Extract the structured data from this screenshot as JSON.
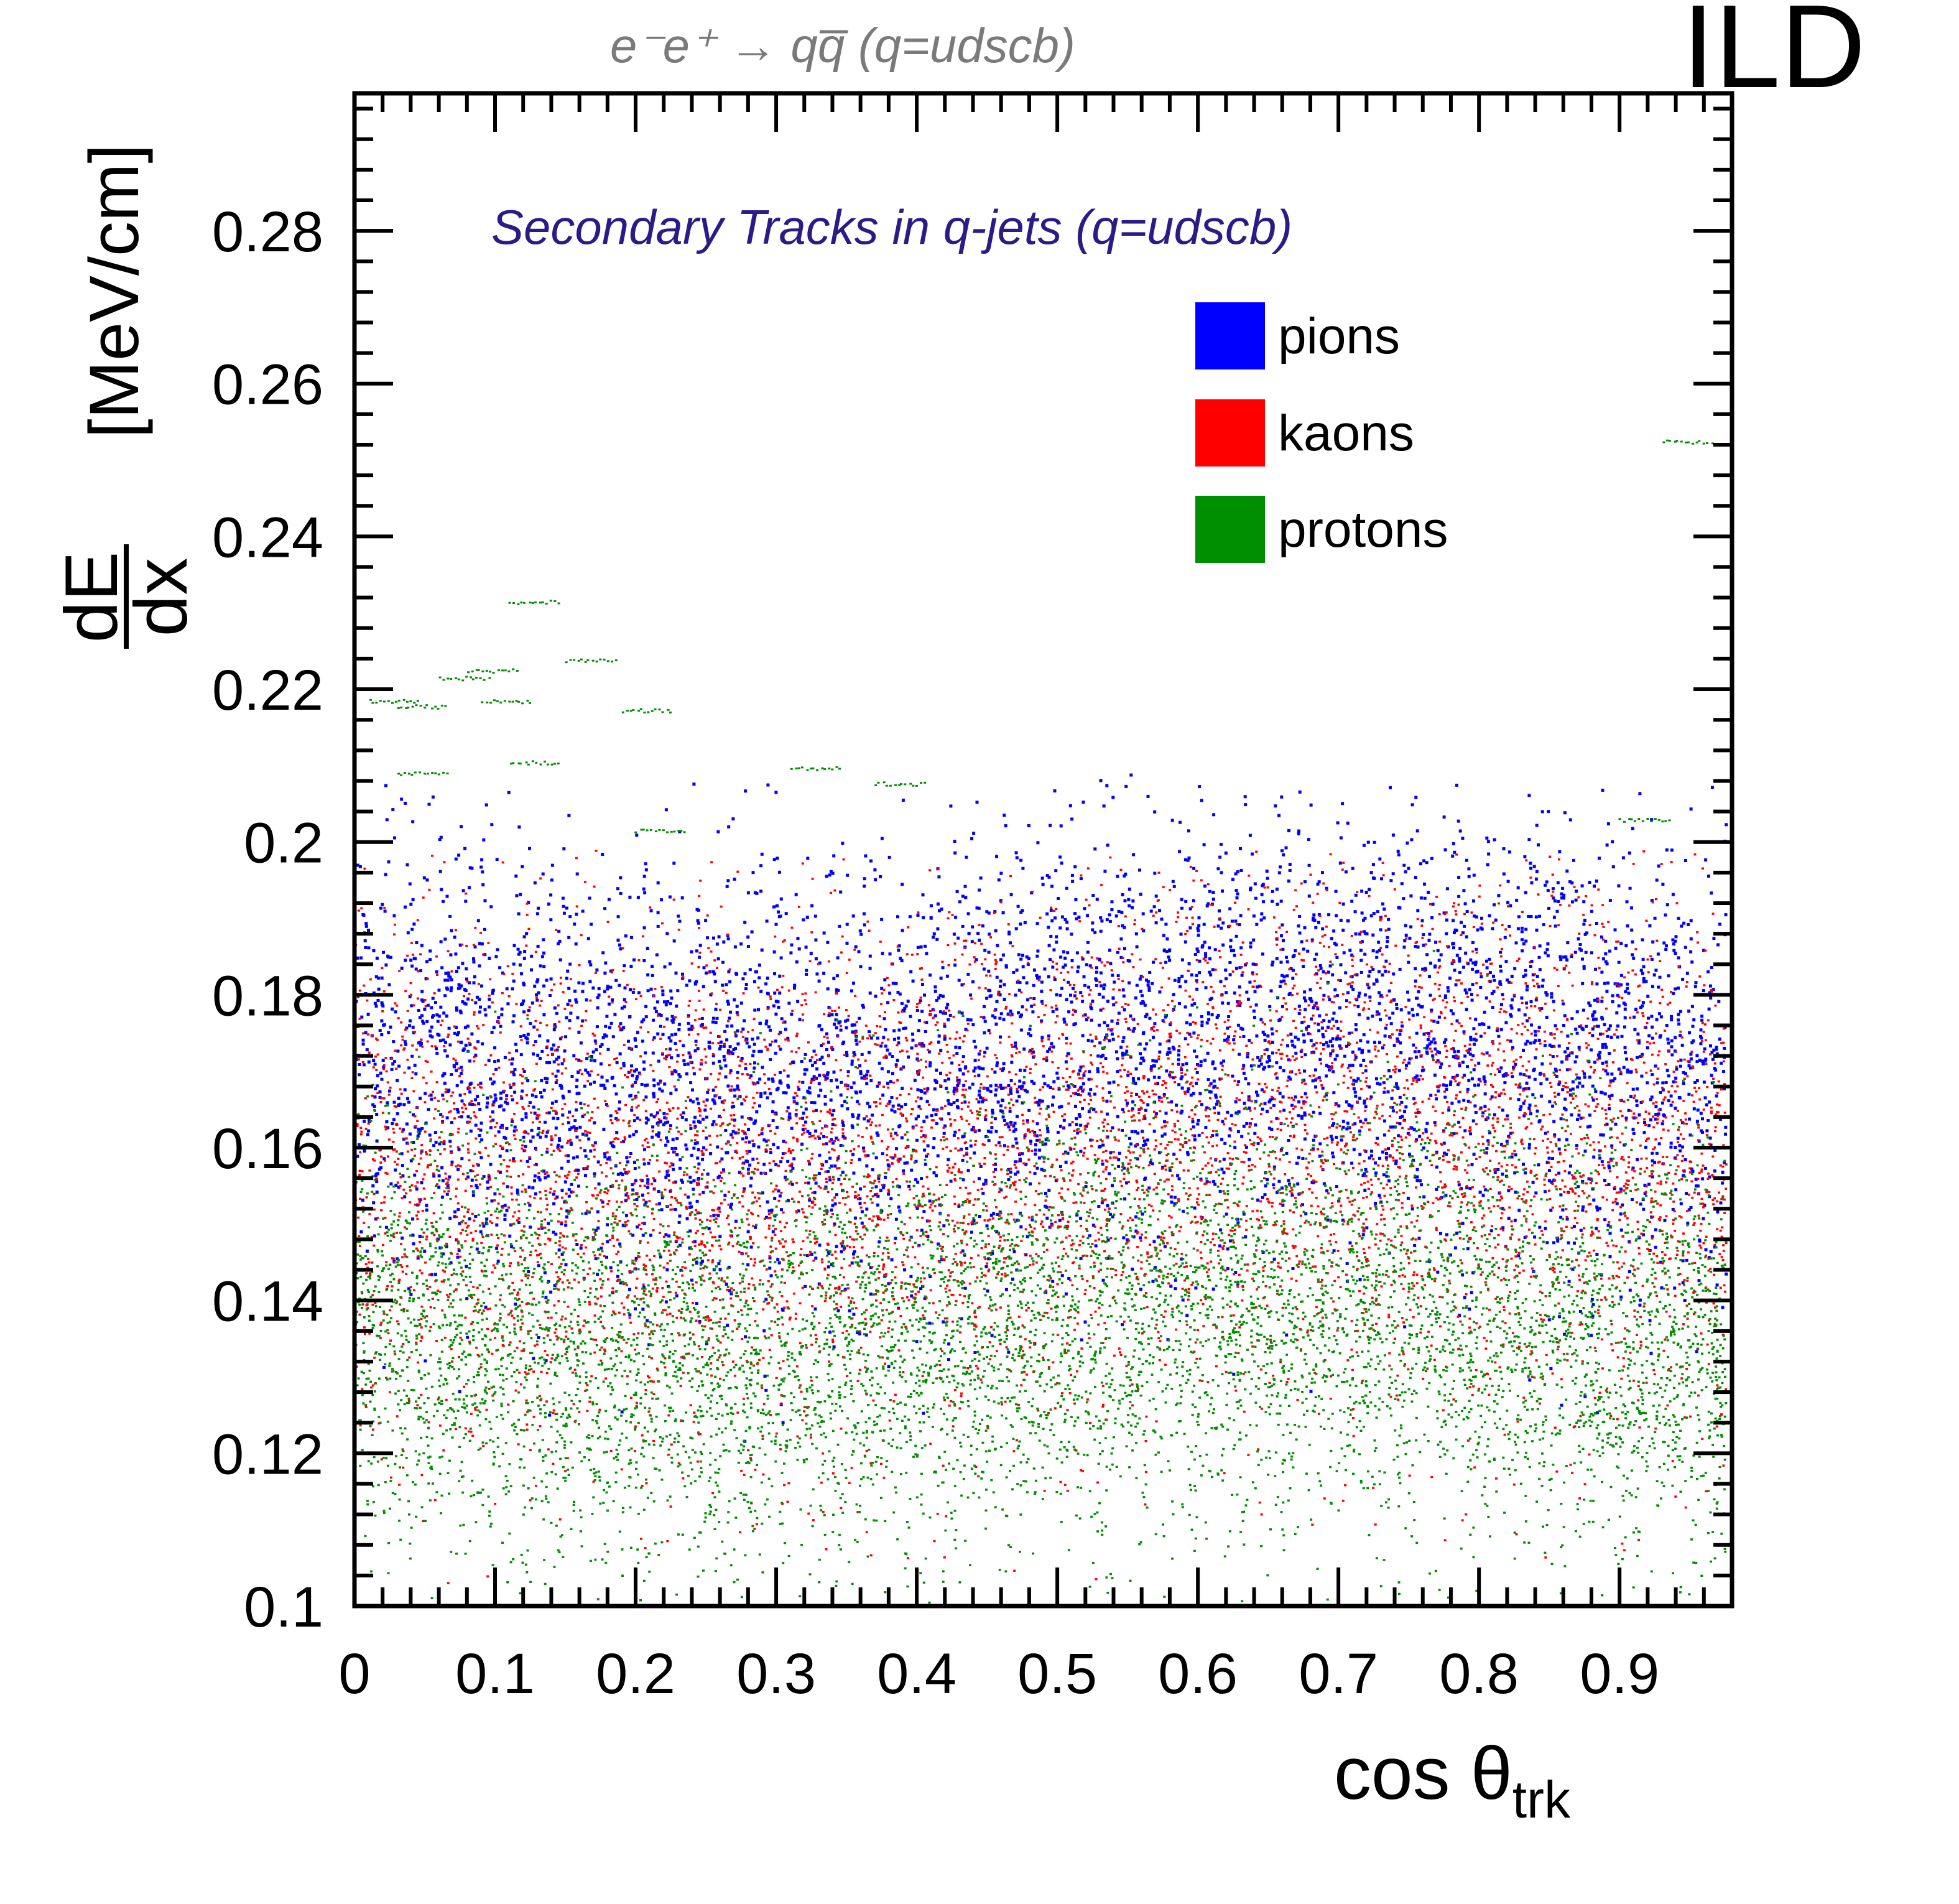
{
  "chart_data": {
    "type": "scatter",
    "title": "e⁻e⁺ → qq̅ (q=udscb)",
    "experiment_label": "ILD",
    "annotation": "Secondary Tracks in q-jets (q=udscb)",
    "xlabel": {
      "main": "cos θ",
      "sub": "trk"
    },
    "ylabel": {
      "numerator": "dE",
      "denominator": "dx",
      "units": "[MeV/cm]"
    },
    "xlim": [
      0,
      0.98
    ],
    "ylim": [
      0.1,
      0.298
    ],
    "x_ticks": [
      "0",
      "0.1",
      "0.2",
      "0.3",
      "0.4",
      "0.5",
      "0.6",
      "0.7",
      "0.8",
      "0.9"
    ],
    "x_tick_values": [
      0,
      0.1,
      0.2,
      0.3,
      0.4,
      0.5,
      0.6,
      0.7,
      0.8,
      0.9
    ],
    "y_ticks": [
      "0.1",
      "0.12",
      "0.14",
      "0.16",
      "0.18",
      "0.2",
      "0.22",
      "0.24",
      "0.26",
      "0.28"
    ],
    "y_tick_values": [
      0.1,
      0.12,
      0.14,
      0.16,
      0.18,
      0.2,
      0.22,
      0.24,
      0.26,
      0.28
    ],
    "legend_position": "top-right",
    "series": [
      {
        "name": "pions",
        "color": "#0000ff",
        "band_center": 0.172,
        "band_spread": 0.0145,
        "y_range_typical": [
          0.125,
          0.205
        ]
      },
      {
        "name": "kaons",
        "color": "#ff0000",
        "band_center": 0.158,
        "band_spread": 0.017,
        "y_range_typical": [
          0.105,
          0.195
        ]
      },
      {
        "name": "protons",
        "color": "#008f00",
        "band_center": 0.137,
        "band_spread": 0.014,
        "y_range_typical": [
          0.1,
          0.205
        ],
        "outliers": [
          [
            0.01,
            0.2185
          ],
          [
            0.03,
            0.2178
          ],
          [
            0.06,
            0.2215
          ],
          [
            0.08,
            0.2225
          ],
          [
            0.09,
            0.2185
          ],
          [
            0.11,
            0.2315
          ],
          [
            0.15,
            0.2238
          ],
          [
            0.19,
            0.2173
          ],
          [
            0.11,
            0.2105
          ],
          [
            0.03,
            0.209
          ],
          [
            0.31,
            0.2097
          ],
          [
            0.37,
            0.2077
          ],
          [
            0.93,
            0.2525
          ],
          [
            0.9,
            0.203
          ],
          [
            0.2,
            0.2015
          ]
        ]
      }
    ],
    "grid": false
  }
}
